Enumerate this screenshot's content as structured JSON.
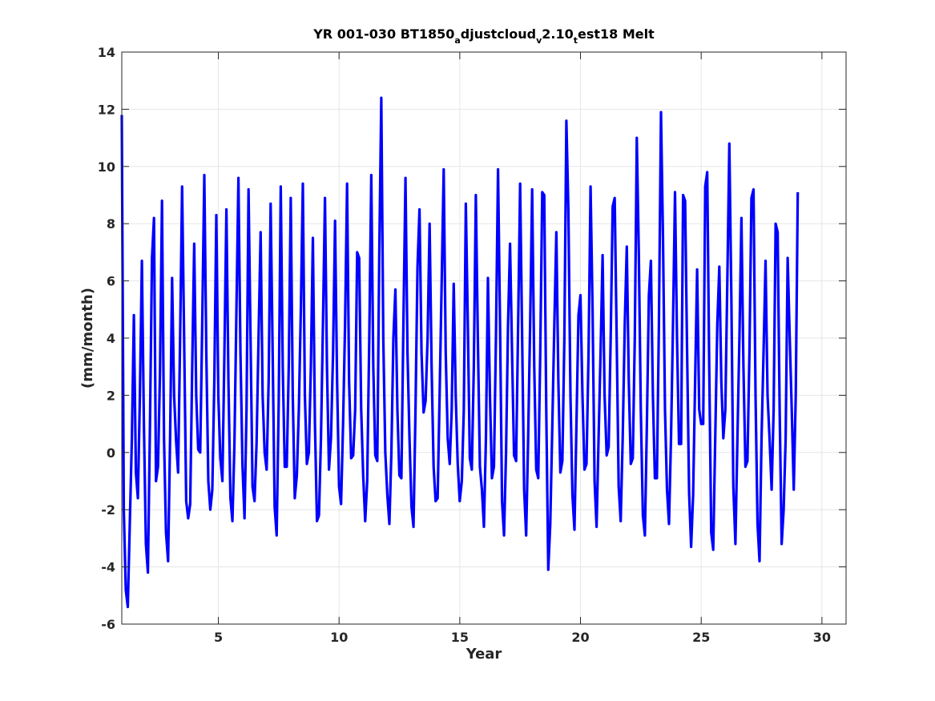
{
  "chart_data": {
    "type": "line",
    "title": {
      "parts": [
        {
          "text": "YR 001-030 BT1850",
          "sub": false
        },
        {
          "text": "a",
          "sub": true
        },
        {
          "text": "djustcloud",
          "sub": false
        },
        {
          "text": "v",
          "sub": true
        },
        {
          "text": "2.10",
          "sub": false
        },
        {
          "text": "t",
          "sub": true
        },
        {
          "text": "est18 Melt",
          "sub": false
        }
      ]
    },
    "xlabel": "Year",
    "ylabel": "(mm/month)",
    "xlim": [
      1,
      31
    ],
    "ylim": [
      -6,
      14
    ],
    "xticks": [
      5,
      10,
      15,
      20,
      25,
      30
    ],
    "yticks": [
      -6,
      -4,
      -2,
      0,
      2,
      4,
      6,
      8,
      10,
      12,
      14
    ],
    "grid": true,
    "series": [
      {
        "color": "#0000ff",
        "x_start": 1,
        "x_step": 0.08333,
        "values": [
          11.8,
          -2.0,
          -4.8,
          -5.4,
          -2.5,
          0.5,
          4.8,
          -0.7,
          -1.6,
          2.0,
          6.7,
          1.0,
          -3.2,
          -4.2,
          1.0,
          6.8,
          8.2,
          -1.0,
          -0.5,
          2.8,
          8.8,
          0.5,
          -2.8,
          -3.8,
          0.5,
          6.1,
          2.0,
          0.4,
          -0.7,
          4.0,
          9.3,
          4.0,
          -1.7,
          -2.3,
          -1.8,
          3.0,
          7.3,
          2.0,
          0.1,
          0.0,
          4.5,
          9.7,
          3.5,
          -1.0,
          -2.0,
          -1.3,
          2.5,
          8.3,
          2.0,
          -0.2,
          -1.0,
          3.5,
          8.5,
          2.5,
          -1.6,
          -2.4,
          0.3,
          5.0,
          9.6,
          3.5,
          -0.5,
          -2.3,
          1.5,
          9.2,
          4.0,
          -1.2,
          -1.7,
          0.3,
          4.0,
          7.7,
          2.0,
          0.0,
          -0.6,
          2.5,
          8.7,
          3.5,
          -1.9,
          -2.9,
          1.8,
          9.3,
          3.0,
          -0.5,
          -0.5,
          3.0,
          8.9,
          2.0,
          -1.6,
          -0.8,
          1.5,
          5.0,
          9.4,
          2.0,
          -0.4,
          0.0,
          3.0,
          7.5,
          1.0,
          -2.4,
          -2.2,
          0.5,
          4.5,
          8.9,
          3.0,
          -0.6,
          0.5,
          3.5,
          8.1,
          2.5,
          -1.2,
          -1.8,
          1.0,
          4.5,
          9.4,
          2.5,
          -0.2,
          -0.1,
          1.5,
          7.0,
          6.8,
          1.5,
          -0.8,
          -2.4,
          -1.0,
          4.0,
          9.7,
          3.0,
          -0.1,
          -0.3,
          7.0,
          12.4,
          4.0,
          0.0,
          -1.5,
          -2.5,
          0.0,
          4.0,
          5.7,
          1.5,
          -0.8,
          -0.9,
          4.5,
          9.6,
          3.5,
          0.5,
          -1.9,
          -2.6,
          1.5,
          6.5,
          8.5,
          3.5,
          1.4,
          1.8,
          4.0,
          8.0,
          3.0,
          -0.5,
          -1.7,
          -1.6,
          2.0,
          6.0,
          9.9,
          3.5,
          0.5,
          -0.4,
          1.5,
          5.9,
          2.0,
          -0.4,
          -1.7,
          -1.0,
          1.5,
          8.7,
          4.5,
          -0.2,
          -0.6,
          3.0,
          9.0,
          4.0,
          -0.5,
          -1.3,
          -2.6,
          0.5,
          6.1,
          2.0,
          -0.9,
          -0.5,
          4.0,
          9.9,
          4.5,
          -1.7,
          -2.9,
          0.0,
          4.5,
          7.3,
          3.5,
          -0.1,
          -0.3,
          4.5,
          9.4,
          4.0,
          -1.3,
          -2.9,
          0.5,
          4.5,
          9.2,
          3.0,
          -0.6,
          -0.9,
          3.5,
          9.1,
          9.0,
          1.5,
          -4.1,
          -2.5,
          1.0,
          4.5,
          7.7,
          2.5,
          -0.7,
          -0.3,
          4.0,
          11.6,
          8.5,
          2.0,
          -1.5,
          -2.7,
          1.0,
          4.8,
          5.5,
          2.0,
          -0.6,
          -0.4,
          3.5,
          9.3,
          5.0,
          -1.0,
          -2.6,
          0.5,
          3.5,
          6.9,
          2.0,
          -0.1,
          0.2,
          4.0,
          8.6,
          8.9,
          4.0,
          -1.2,
          -2.4,
          0.5,
          4.5,
          7.2,
          2.5,
          -0.4,
          -0.2,
          4.0,
          11.0,
          7.0,
          1.5,
          -2.2,
          -2.9,
          1.0,
          5.5,
          6.7,
          2.0,
          -0.9,
          -0.9,
          4.5,
          11.9,
          7.5,
          1.5,
          -1.3,
          -2.5,
          0.5,
          4.5,
          9.1,
          4.0,
          0.3,
          0.3,
          9.0,
          8.8,
          3.5,
          -1.4,
          -3.3,
          -1.5,
          2.5,
          6.4,
          1.5,
          1.0,
          1.0,
          9.3,
          9.8,
          3.0,
          -2.8,
          -3.4,
          0.5,
          4.5,
          6.5,
          2.5,
          0.5,
          1.5,
          6.0,
          10.8,
          5.5,
          -1.2,
          -3.2,
          0.5,
          4.0,
          8.2,
          3.0,
          -0.5,
          -0.3,
          3.5,
          8.9,
          9.2,
          2.0,
          -2.5,
          -3.8,
          0.5,
          3.5,
          6.7,
          2.0,
          0.5,
          -1.3,
          1.5,
          8.0,
          7.7,
          1.5,
          -3.2,
          -2.0,
          0.5,
          6.8,
          4.0,
          1.5,
          -1.3,
          2.0,
          9.1
        ]
      }
    ]
  }
}
